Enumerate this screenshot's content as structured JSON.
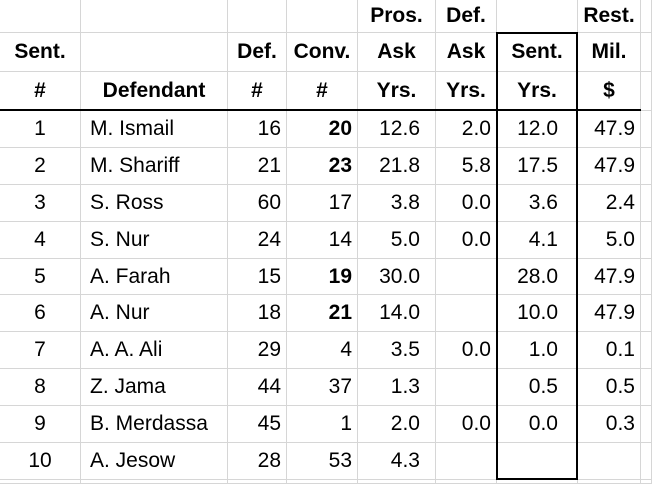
{
  "table": {
    "column_keys": [
      "sent_no",
      "defendant",
      "def_no",
      "conv_no",
      "pros_ask",
      "def_ask",
      "sent_yrs",
      "rest_mil"
    ],
    "header_rows": [
      [
        "",
        "",
        "",
        "",
        "Pros.",
        "Def.",
        "",
        "Rest."
      ],
      [
        "Sent.",
        "",
        "Def.",
        "Conv.",
        "Ask",
        "Ask",
        "Sent.",
        "Mil."
      ],
      [
        "#",
        "Defendant",
        "#",
        "#",
        "Yrs.",
        "Yrs.",
        "Yrs.",
        "$"
      ]
    ],
    "rows": [
      {
        "sent_no": "1",
        "defendant": "M. Ismail",
        "def_no": "16",
        "conv_no": "20",
        "conv_bold": true,
        "pros_ask": "12.6",
        "def_ask": "2.0",
        "sent_yrs": "12.0",
        "rest_mil": "47.9"
      },
      {
        "sent_no": "2",
        "defendant": "M. Shariff",
        "def_no": "21",
        "conv_no": "23",
        "conv_bold": true,
        "pros_ask": "21.8",
        "def_ask": "5.8",
        "sent_yrs": "17.5",
        "rest_mil": "47.9"
      },
      {
        "sent_no": "3",
        "defendant": "S. Ross",
        "def_no": "60",
        "conv_no": "17",
        "conv_bold": false,
        "pros_ask": "3.8",
        "def_ask": "0.0",
        "sent_yrs": "3.6",
        "rest_mil": "2.4"
      },
      {
        "sent_no": "4",
        "defendant": "S. Nur",
        "def_no": "24",
        "conv_no": "14",
        "conv_bold": false,
        "pros_ask": "5.0",
        "def_ask": "0.0",
        "sent_yrs": "4.1",
        "rest_mil": "5.0"
      },
      {
        "sent_no": "5",
        "defendant": "A. Farah",
        "def_no": "15",
        "conv_no": "19",
        "conv_bold": true,
        "pros_ask": "30.0",
        "def_ask": "",
        "sent_yrs": "28.0",
        "rest_mil": "47.9"
      },
      {
        "sent_no": "6",
        "defendant": "A. Nur",
        "def_no": "18",
        "conv_no": "21",
        "conv_bold": true,
        "pros_ask": "14.0",
        "def_ask": "",
        "sent_yrs": "10.0",
        "rest_mil": "47.9"
      },
      {
        "sent_no": "7",
        "defendant": "A. A. Ali",
        "def_no": "29",
        "conv_no": "4",
        "conv_bold": false,
        "pros_ask": "3.5",
        "def_ask": "0.0",
        "sent_yrs": "1.0",
        "rest_mil": "0.1"
      },
      {
        "sent_no": "8",
        "defendant": "Z. Jama",
        "def_no": "44",
        "conv_no": "37",
        "conv_bold": false,
        "pros_ask": "1.3",
        "def_ask": "",
        "sent_yrs": "0.5",
        "rest_mil": "0.5"
      },
      {
        "sent_no": "9",
        "defendant": "B. Merdassa",
        "def_no": "45",
        "conv_no": "1",
        "conv_bold": false,
        "pros_ask": "2.0",
        "def_ask": "0.0",
        "sent_yrs": "0.0",
        "rest_mil": "0.3"
      },
      {
        "sent_no": "10",
        "defendant": "A. Jesow",
        "def_no": "28",
        "conv_no": "53",
        "conv_bold": false,
        "pros_ask": "4.3",
        "def_ask": "",
        "sent_yrs": "",
        "rest_mil": ""
      }
    ]
  },
  "colors": {
    "background": "#ffffff",
    "text": "#000000",
    "gridline": "#d6d6d6",
    "emphasis_border": "#000000"
  }
}
